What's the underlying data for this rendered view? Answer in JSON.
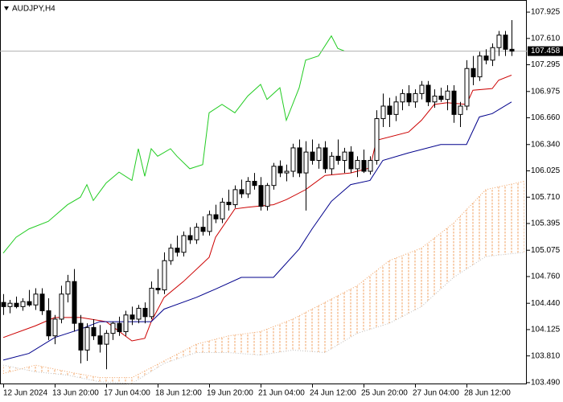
{
  "chart_data": {
    "type": "candlestick",
    "title": "AUDJPY,H4",
    "categories": [
      "12 Jun 2024",
      null,
      null,
      null,
      null,
      null,
      null,
      null,
      "13 Jun 20:00",
      null,
      null,
      null,
      null,
      null,
      null,
      null,
      "17 Jun 04:00",
      null,
      null,
      null,
      null,
      null,
      null,
      null,
      "18 Jun 12:00",
      null,
      null,
      null,
      null,
      null,
      null,
      null,
      "19 Jun 20:00",
      null,
      null,
      null,
      null,
      null,
      null,
      null,
      "21 Jun 04:00",
      null,
      null,
      null,
      null,
      null,
      null,
      null,
      "24 Jun 12:00",
      null,
      null,
      null,
      null,
      null,
      null,
      null,
      "25 Jun 20:00",
      null,
      null,
      null,
      null,
      null,
      null,
      null,
      "27 Jun 04:00",
      null,
      null,
      null,
      null,
      null,
      null,
      null,
      "28 Jun 12:00",
      null,
      null,
      null,
      null,
      null,
      null,
      null
    ],
    "open": [
      104.45,
      104.4,
      104.44,
      104.4,
      104.46,
      104.42,
      104.55,
      104.35,
      104.05,
      104.25,
      104.55,
      104.7,
      104.2,
      103.88,
      104.15,
      104.05,
      103.95,
      104.08,
      104.2,
      104.1,
      104.3,
      104.25,
      104.38,
      104.28,
      104.62,
      104.6,
      104.95,
      105.1,
      105.05,
      105.25,
      105.2,
      105.35,
      105.3,
      105.5,
      105.45,
      105.65,
      105.62,
      105.8,
      105.75,
      105.9,
      105.85,
      105.6,
      105.85,
      106.08,
      106.0,
      106.02,
      106.3,
      106.0,
      106.25,
      106.15,
      106.3,
      106.05,
      106.2,
      106.15,
      106.25,
      106.05,
      106.15,
      106.02,
      106.15,
      106.65,
      106.8,
      106.7,
      106.85,
      106.95,
      106.85,
      106.95,
      107.05,
      106.85,
      106.92,
      106.88,
      106.98,
      106.7,
      106.8,
      107.25,
      107.15,
      107.4,
      107.35,
      107.5,
      107.65,
      107.48
    ],
    "high": [
      104.55,
      104.48,
      104.52,
      104.5,
      104.6,
      104.62,
      104.62,
      104.5,
      104.3,
      104.65,
      104.78,
      104.85,
      104.3,
      104.2,
      104.25,
      104.18,
      104.12,
      104.22,
      104.28,
      104.35,
      104.4,
      104.42,
      104.45,
      104.7,
      104.85,
      105.05,
      105.15,
      105.25,
      105.3,
      105.35,
      105.4,
      105.48,
      105.55,
      105.62,
      105.7,
      105.8,
      105.85,
      105.92,
      105.95,
      106.0,
      105.95,
      105.88,
      106.12,
      106.15,
      106.1,
      106.35,
      106.4,
      106.38,
      106.4,
      106.35,
      106.38,
      106.25,
      106.4,
      106.3,
      106.32,
      106.2,
      106.28,
      106.2,
      106.75,
      106.95,
      106.9,
      106.92,
      107.0,
      107.05,
      107.0,
      107.1,
      107.1,
      107.0,
      107.02,
      107.05,
      107.05,
      106.85,
      107.35,
      107.4,
      107.45,
      107.48,
      107.55,
      107.7,
      107.7,
      107.83
    ],
    "low": [
      104.3,
      104.32,
      104.38,
      104.35,
      104.4,
      104.36,
      104.3,
      104.0,
      103.95,
      104.2,
      104.45,
      104.1,
      103.72,
      103.75,
      104.0,
      103.85,
      103.65,
      104.0,
      104.05,
      104.05,
      104.18,
      104.2,
      104.2,
      104.25,
      104.55,
      104.55,
      104.9,
      105.0,
      105.0,
      105.15,
      105.15,
      105.25,
      105.25,
      105.4,
      105.4,
      105.55,
      105.58,
      105.7,
      105.7,
      105.8,
      105.55,
      105.55,
      105.8,
      105.95,
      105.9,
      105.95,
      105.95,
      105.55,
      106.1,
      106.05,
      106.0,
      105.98,
      106.1,
      106.0,
      106.0,
      105.95,
      106.0,
      105.98,
      106.1,
      106.55,
      106.55,
      106.62,
      106.75,
      106.8,
      106.78,
      106.88,
      106.8,
      106.78,
      106.85,
      106.75,
      106.6,
      106.55,
      106.75,
      107.05,
      107.1,
      107.3,
      107.28,
      107.4,
      107.4,
      107.4
    ],
    "close": [
      104.4,
      104.44,
      104.4,
      104.46,
      104.42,
      104.55,
      104.35,
      104.05,
      104.25,
      104.55,
      104.7,
      104.2,
      103.88,
      104.15,
      104.05,
      103.95,
      104.08,
      104.2,
      104.1,
      104.3,
      104.25,
      104.38,
      104.28,
      104.62,
      104.6,
      104.95,
      105.1,
      105.05,
      105.25,
      105.2,
      105.35,
      105.3,
      105.5,
      105.45,
      105.65,
      105.62,
      105.8,
      105.75,
      105.9,
      105.85,
      105.6,
      105.85,
      106.08,
      106.0,
      106.02,
      106.3,
      106.0,
      106.25,
      106.15,
      106.3,
      106.05,
      106.2,
      106.15,
      106.25,
      106.05,
      106.15,
      106.02,
      106.15,
      106.65,
      106.8,
      106.7,
      106.85,
      106.95,
      106.85,
      106.95,
      107.05,
      106.85,
      106.92,
      106.88,
      106.98,
      106.7,
      106.8,
      107.25,
      107.15,
      107.4,
      107.35,
      107.5,
      107.65,
      107.48,
      107.458
    ],
    "up_color": "#ffffff",
    "down_color": "#000000",
    "ylim": [
      103.47,
      108.07
    ],
    "yticks": [
      107.925,
      {
        "value": 107.61,
        "label": "107.610"
      },
      107.295,
      106.975,
      {
        "value": 106.66,
        "label": "106.660"
      },
      {
        "value": 106.34,
        "label": "106.340"
      },
      106.025,
      {
        "value": 105.71,
        "label": "105.710"
      },
      105.395,
      105.075,
      {
        "value": 104.76,
        "label": "104.760"
      },
      {
        "value": 104.44,
        "label": "104.440"
      },
      104.125,
      {
        "value": 103.81,
        "label": "103.810"
      },
      {
        "value": 103.49,
        "label": "103.490"
      }
    ],
    "last_price": 107.458,
    "lines": [
      {
        "color": "#cc0000",
        "x": [
          0,
          5,
          8,
          12,
          16,
          20,
          22,
          23,
          25,
          28,
          32,
          33,
          36,
          38,
          42,
          44,
          47,
          50,
          54,
          57,
          58,
          63,
          65,
          67,
          69,
          72,
          73,
          76,
          77,
          79
        ],
        "values": [
          104.03,
          104.17,
          104.27,
          104.27,
          104.22,
          103.99,
          104.02,
          104.22,
          104.51,
          104.7,
          104.99,
          105.23,
          105.57,
          105.59,
          105.62,
          105.68,
          105.8,
          105.97,
          106.0,
          106.06,
          106.39,
          106.49,
          106.63,
          106.82,
          106.84,
          106.82,
          106.99,
          107.01,
          107.11,
          107.17
        ]
      },
      {
        "color": "#00008b",
        "x": [
          0,
          4,
          8,
          12,
          15,
          20,
          23,
          25,
          30,
          33,
          37,
          42,
          46,
          48,
          51,
          54,
          57,
          59,
          63,
          68,
          72,
          74,
          76,
          79
        ],
        "values": [
          103.76,
          103.84,
          104.03,
          104.13,
          104.22,
          104.22,
          104.22,
          104.37,
          104.51,
          104.61,
          104.75,
          104.75,
          105.09,
          105.33,
          105.66,
          105.86,
          105.91,
          106.15,
          106.24,
          106.34,
          106.34,
          106.67,
          106.71,
          106.85
        ]
      },
      {
        "color": "#22cc22",
        "x": [
          0,
          2,
          4,
          7,
          10,
          12,
          13,
          14,
          16,
          18,
          20,
          21,
          22,
          23,
          24,
          26,
          27,
          29,
          31,
          32,
          34,
          36,
          38,
          40,
          41,
          43,
          44,
          46,
          47,
          49,
          51,
          52,
          53
        ],
        "values": [
          105.04,
          105.23,
          105.33,
          105.42,
          105.62,
          105.71,
          105.86,
          105.67,
          105.88,
          106.01,
          105.91,
          106.29,
          105.96,
          106.29,
          106.2,
          106.29,
          106.2,
          106.05,
          106.1,
          106.72,
          106.82,
          106.72,
          106.92,
          107.06,
          106.88,
          107.02,
          106.63,
          107.02,
          107.35,
          107.4,
          107.64,
          107.49,
          107.46
        ]
      }
    ],
    "cloud": [
      {
        "color": "#f0a060",
        "x": [
          0,
          5,
          10,
          15,
          20,
          25,
          30,
          35,
          40,
          45,
          50,
          55,
          60,
          65,
          70,
          75,
          81
        ],
        "values": [
          103.6,
          103.7,
          103.62,
          103.55,
          103.55,
          103.75,
          103.95,
          104.05,
          104.1,
          104.25,
          104.45,
          104.65,
          104.95,
          105.1,
          105.4,
          105.8,
          105.9
        ]
      },
      {
        "color": "#c0c0c0",
        "x": [
          0,
          5,
          10,
          15,
          20,
          25,
          30,
          35,
          40,
          45,
          50,
          55,
          60,
          65,
          70,
          75,
          81
        ],
        "values": [
          103.7,
          103.62,
          103.58,
          103.5,
          103.48,
          103.72,
          103.85,
          103.85,
          103.82,
          103.88,
          103.85,
          104.08,
          104.2,
          104.4,
          104.75,
          105.0,
          105.05
        ]
      }
    ]
  }
}
